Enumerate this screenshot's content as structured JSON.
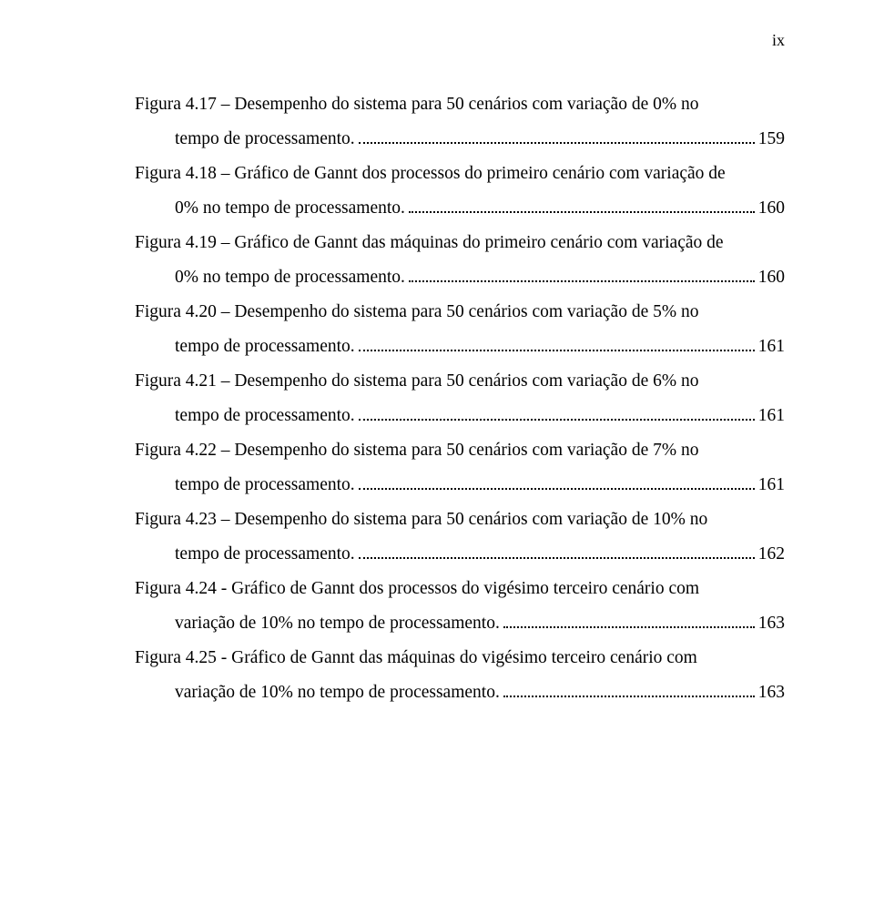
{
  "page_marker": "ix",
  "font": {
    "family": "Times New Roman",
    "body_size_pt": 12,
    "color": "#000000",
    "background": "#ffffff"
  },
  "entries": [
    {
      "lead": "Figura 4.17 – Desempenho do sistema para 50 cenários com variação de 0% no",
      "tail": "tempo de processamento.",
      "page": "159"
    },
    {
      "lead": "Figura 4.18 – Gráfico de Gannt dos processos do primeiro cenário com variação de",
      "tail": "0% no tempo de processamento.",
      "page": "160"
    },
    {
      "lead": "Figura 4.19 – Gráfico de Gannt das máquinas do primeiro cenário com variação de",
      "tail": "0% no tempo de processamento.",
      "page": "160"
    },
    {
      "lead": "Figura 4.20 – Desempenho do sistema para 50 cenários com variação de 5% no",
      "tail": "tempo de processamento.",
      "page": "161"
    },
    {
      "lead": "Figura 4.21 – Desempenho do sistema para 50 cenários com variação de 6% no",
      "tail": "tempo de processamento.",
      "page": "161"
    },
    {
      "lead": "Figura 4.22 – Desempenho do sistema para 50 cenários com variação de 7% no",
      "tail": "tempo de processamento.",
      "page": "161"
    },
    {
      "lead": "Figura 4.23 – Desempenho do sistema para 50 cenários com variação de 10% no",
      "tail": "tempo de processamento.",
      "page": "162"
    },
    {
      "lead": "Figura 4.24 - Gráfico de Gannt dos processos do vigésimo terceiro cenário com",
      "tail": "variação de 10% no tempo de processamento.",
      "page": "163"
    },
    {
      "lead": "Figura 4.25 - Gráfico de Gannt das máquinas do vigésimo terceiro cenário com",
      "tail": "variação de 10% no tempo de processamento.",
      "page": "163"
    }
  ]
}
